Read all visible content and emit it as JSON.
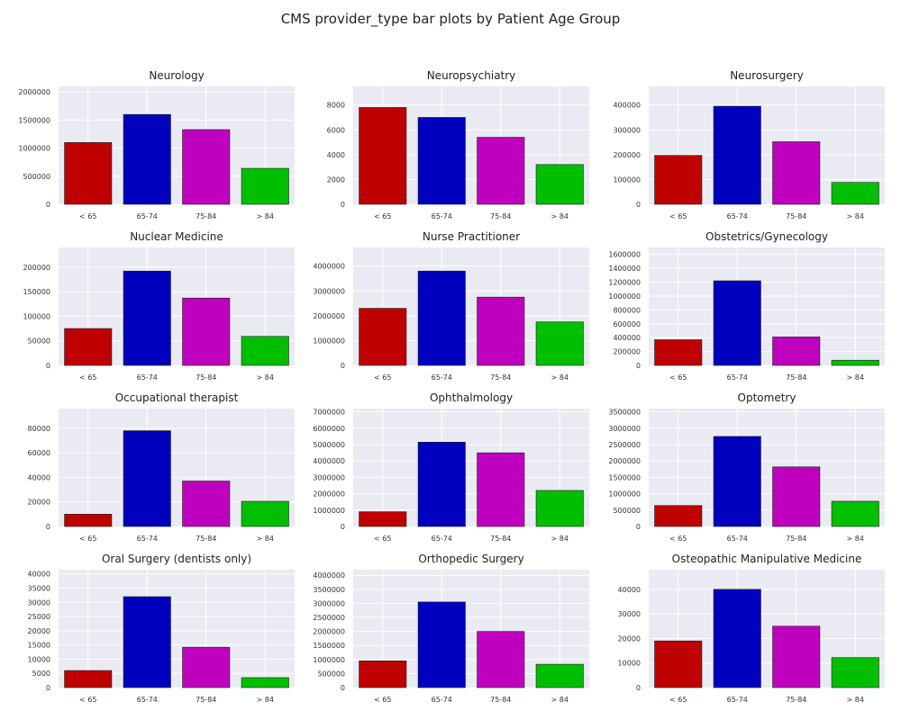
{
  "suptitle": "CMS provider_type bar plots by Patient Age Group",
  "colors": {
    "background": "#eaeaf2",
    "grid": "#ffffff",
    "bars": [
      "#bf0000",
      "#0000bf",
      "#bf00bf",
      "#00bf00"
    ]
  },
  "chart_data": [
    {
      "type": "bar",
      "title": "Neurology",
      "categories": [
        "< 65",
        "65-74",
        "75-84",
        "> 84"
      ],
      "values": [
        1100000,
        1600000,
        1330000,
        640000
      ],
      "ylim": [
        0,
        2100000
      ],
      "yticks": [
        0,
        500000,
        1000000,
        1500000,
        2000000
      ],
      "grid": true
    },
    {
      "type": "bar",
      "title": "Neuropsychiatry",
      "categories": [
        "< 65",
        "65-74",
        "75-84",
        "> 84"
      ],
      "values": [
        7800,
        7000,
        5400,
        3200
      ],
      "ylim": [
        0,
        9500
      ],
      "yticks": [
        0,
        2000,
        4000,
        6000,
        8000
      ],
      "grid": true
    },
    {
      "type": "bar",
      "title": "Neurosurgery",
      "categories": [
        "< 65",
        "65-74",
        "75-84",
        "> 84"
      ],
      "values": [
        197000,
        395000,
        252000,
        88000
      ],
      "ylim": [
        0,
        475000
      ],
      "yticks": [
        0,
        100000,
        200000,
        300000,
        400000
      ],
      "grid": true
    },
    {
      "type": "bar",
      "title": "Nuclear Medicine",
      "categories": [
        "< 65",
        "65-74",
        "75-84",
        "> 84"
      ],
      "values": [
        75000,
        192000,
        137000,
        59000
      ],
      "ylim": [
        0,
        240000
      ],
      "yticks": [
        0,
        50000,
        100000,
        150000,
        200000
      ],
      "grid": true
    },
    {
      "type": "bar",
      "title": "Nurse Practitioner",
      "categories": [
        "< 65",
        "65-74",
        "75-84",
        "> 84"
      ],
      "values": [
        2300000,
        3800000,
        2750000,
        1750000
      ],
      "ylim": [
        0,
        4750000
      ],
      "yticks": [
        0,
        1000000,
        2000000,
        3000000,
        4000000
      ],
      "grid": true
    },
    {
      "type": "bar",
      "title": "Obstetrics/Gynecology",
      "categories": [
        "< 65",
        "65-74",
        "75-84",
        "> 84"
      ],
      "values": [
        370000,
        1220000,
        410000,
        75000
      ],
      "ylim": [
        0,
        1700000
      ],
      "yticks": [
        0,
        200000,
        400000,
        600000,
        800000,
        1000000,
        1200000,
        1400000,
        1600000
      ],
      "grid": true
    },
    {
      "type": "bar",
      "title": "Occupational therapist",
      "categories": [
        "< 65",
        "65-74",
        "75-84",
        "> 84"
      ],
      "values": [
        10000,
        78000,
        37000,
        20500
      ],
      "ylim": [
        0,
        96000
      ],
      "yticks": [
        0,
        20000,
        40000,
        60000,
        80000
      ],
      "grid": true
    },
    {
      "type": "bar",
      "title": "Ophthalmology",
      "categories": [
        "< 65",
        "65-74",
        "75-84",
        "> 84"
      ],
      "values": [
        900000,
        5150000,
        4500000,
        2200000
      ],
      "ylim": [
        0,
        7200000
      ],
      "yticks": [
        0,
        1000000,
        2000000,
        3000000,
        4000000,
        5000000,
        6000000,
        7000000
      ],
      "grid": true
    },
    {
      "type": "bar",
      "title": "Optometry",
      "categories": [
        "< 65",
        "65-74",
        "75-84",
        "> 84"
      ],
      "values": [
        640000,
        2750000,
        1820000,
        770000
      ],
      "ylim": [
        0,
        3600000
      ],
      "yticks": [
        0,
        500000,
        1000000,
        1500000,
        2000000,
        2500000,
        3000000,
        3500000
      ],
      "grid": true
    },
    {
      "type": "bar",
      "title": "Oral Surgery (dentists only)",
      "categories": [
        "< 65",
        "65-74",
        "75-84",
        "> 84"
      ],
      "values": [
        6000,
        32000,
        14200,
        3500
      ],
      "ylim": [
        0,
        41500
      ],
      "yticks": [
        0,
        5000,
        10000,
        15000,
        20000,
        25000,
        30000,
        35000,
        40000
      ],
      "grid": true
    },
    {
      "type": "bar",
      "title": "Orthopedic Surgery",
      "categories": [
        "< 65",
        "65-74",
        "75-84",
        "> 84"
      ],
      "values": [
        950000,
        3050000,
        2000000,
        830000
      ],
      "ylim": [
        0,
        4200000
      ],
      "yticks": [
        0,
        500000,
        1000000,
        1500000,
        2000000,
        2500000,
        3000000,
        3500000,
        4000000
      ],
      "grid": true
    },
    {
      "type": "bar",
      "title": "Osteopathic Manipulative Medicine",
      "categories": [
        "< 65",
        "65-74",
        "75-84",
        "> 84"
      ],
      "values": [
        19000,
        40000,
        25000,
        12200
      ],
      "ylim": [
        0,
        48000
      ],
      "yticks": [
        0,
        10000,
        20000,
        30000,
        40000
      ],
      "grid": true
    }
  ]
}
